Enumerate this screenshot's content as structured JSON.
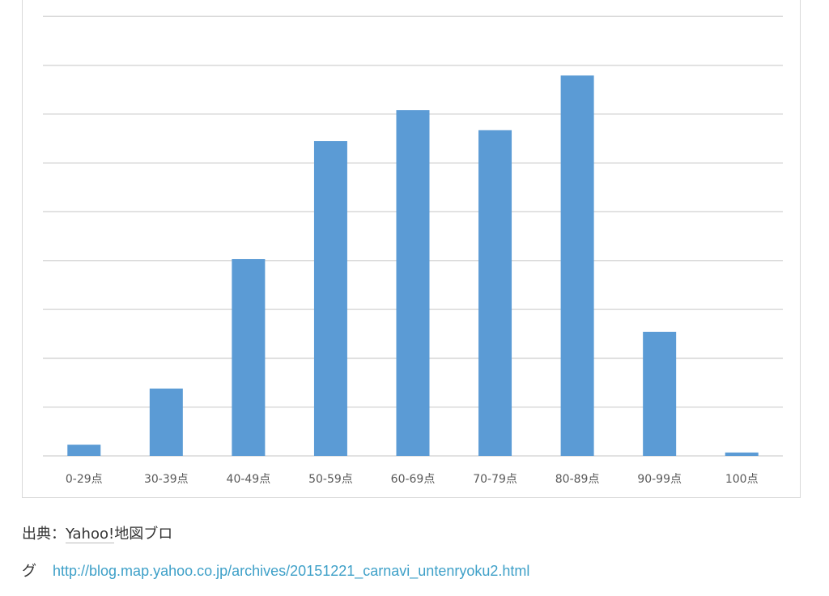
{
  "chart_data": {
    "type": "bar",
    "categories": [
      "0-29点",
      "30-39点",
      "40-49点",
      "50-59点",
      "60-69点",
      "70-79点",
      "80-89点",
      "90-99点",
      "100点"
    ],
    "values": [
      0.23,
      1.38,
      4.03,
      6.45,
      7.08,
      6.67,
      7.79,
      2.54,
      0.07
    ],
    "ylim": [
      0,
      9
    ],
    "grid": true,
    "bar_color": "#5b9bd5",
    "grid_color": "#d9d9d9"
  },
  "source": {
    "prefix": "出典：",
    "name_link": "Yahoo!",
    "name_rest": "地図ブロ",
    "name_wrap": "グ",
    "url": "http://blog.map.yahoo.co.jp/archives/20151221_carnavi_untenryoku2.html"
  }
}
